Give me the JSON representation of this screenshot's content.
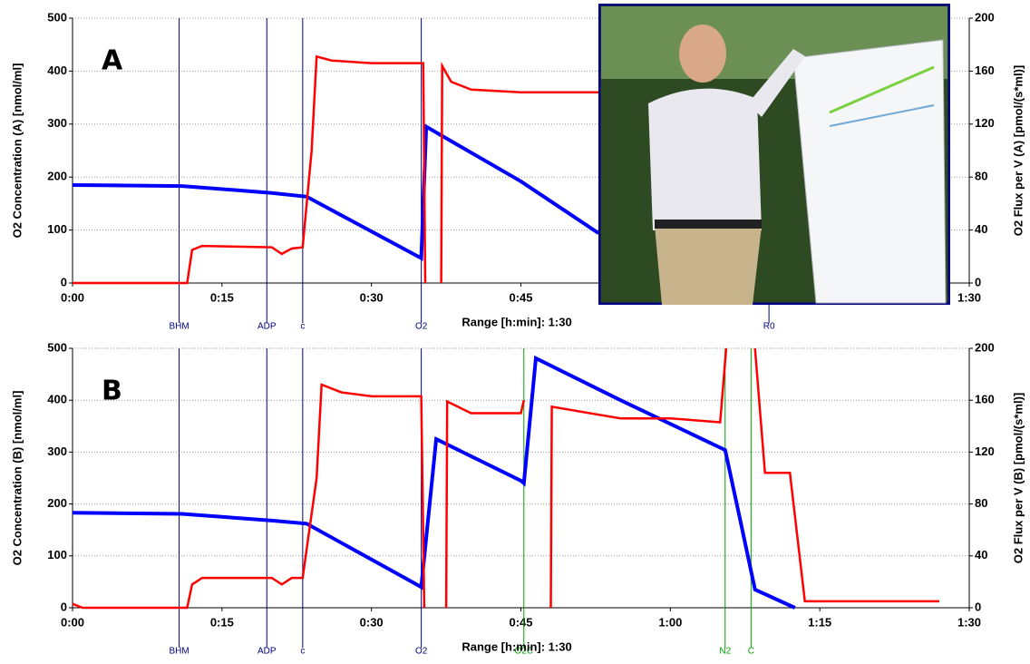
{
  "chart_data": [
    {
      "type": "line",
      "panel": "A",
      "ylabel": "O2 Concentration (A) [nmol/ml]",
      "y2label": "O2 Flux per V (A) [pmol/(s*ml)]",
      "xlabel": "Range [h:min]: 1:30",
      "xlim": [
        0,
        90
      ],
      "ylim": [
        0,
        500
      ],
      "y2lim": [
        0,
        200
      ],
      "grid": true,
      "xticks": [
        {
          "value": 0,
          "label": "0:00"
        },
        {
          "value": 15,
          "label": "0:15"
        },
        {
          "value": 30,
          "label": "0:30"
        },
        {
          "value": 45,
          "label": "0:45"
        },
        {
          "value": 90,
          "label": "1:30"
        }
      ],
      "yticks": [
        0,
        100,
        200,
        300,
        400,
        500
      ],
      "y2ticks": [
        0,
        40,
        80,
        120,
        160,
        200
      ],
      "events": [
        {
          "x": 10.7,
          "label": "BHM",
          "color": "#000080"
        },
        {
          "x": 19.5,
          "label": "ADP",
          "color": "#000080"
        },
        {
          "x": 23.1,
          "label": "c",
          "color": "#000080"
        },
        {
          "x": 35.0,
          "label": "O2",
          "color": "#000080"
        },
        {
          "x": 69.9,
          "label": "R0",
          "color": "#000080"
        }
      ],
      "series": [
        {
          "color": "#0000ff",
          "axis": "y",
          "x": [
            0,
            11,
            20,
            23.5,
            35,
            35.5,
            45,
            52.8
          ],
          "values": [
            185,
            183,
            170,
            163,
            47,
            295,
            192,
            94
          ]
        },
        {
          "color": "#ff0000",
          "axis": "y2",
          "x": [
            0,
            11.5,
            12,
            13,
            20,
            21,
            22,
            23.1,
            24,
            24.5,
            26,
            30,
            35,
            35.2,
            35.4,
            35.5,
            37,
            37.1,
            38,
            40,
            45,
            52.8
          ],
          "values": [
            0,
            0,
            25,
            28,
            27,
            22,
            26,
            27,
            100,
            171,
            168,
            166,
            166,
            166,
            0,
            null,
            0,
            164,
            152,
            146,
            144,
            144
          ]
        }
      ]
    },
    {
      "type": "line",
      "panel": "B",
      "ylabel": "O2 Concentration (B) [nmol/ml]",
      "y2label": "O2 Flux per V (B) [pmol/(s*ml)]",
      "xlabel": "Range [h:min]: 1:30",
      "xlim": [
        0,
        90
      ],
      "ylim": [
        0,
        500
      ],
      "y2lim": [
        0,
        200
      ],
      "grid": true,
      "xticks": [
        {
          "value": 0,
          "label": "0:00"
        },
        {
          "value": 15,
          "label": "0:15"
        },
        {
          "value": 30,
          "label": "0:30"
        },
        {
          "value": 45,
          "label": "0:45"
        },
        {
          "value": 60,
          "label": "1:00"
        },
        {
          "value": 75,
          "label": "1:15"
        },
        {
          "value": 90,
          "label": "1:30"
        }
      ],
      "yticks": [
        0,
        100,
        200,
        300,
        400,
        500
      ],
      "y2ticks": [
        0,
        40,
        80,
        120,
        160,
        200
      ],
      "events": [
        {
          "x": 10.7,
          "label": "BHM",
          "color": "#000080"
        },
        {
          "x": 19.5,
          "label": "ADP",
          "color": "#000080"
        },
        {
          "x": 23.1,
          "label": "c",
          "color": "#000080"
        },
        {
          "x": 35.0,
          "label": "O2",
          "color": "#000080"
        },
        {
          "x": 45.3,
          "label": "O2C",
          "color": "#00a000"
        },
        {
          "x": 65.5,
          "label": "N2",
          "color": "#00a000"
        },
        {
          "x": 68.1,
          "label": "C",
          "color": "#00a000"
        }
      ],
      "series": [
        {
          "color": "#0000ff",
          "axis": "y",
          "x": [
            0,
            11,
            20,
            23.5,
            35,
            36.5,
            45,
            45.3,
            46.5,
            55,
            65.5,
            67,
            68.5,
            72.5
          ],
          "values": [
            183,
            181,
            168,
            162,
            40,
            325,
            245,
            240,
            481,
            400,
            304,
            170,
            35,
            0
          ]
        },
        {
          "color": "#ff0000",
          "axis": "y2",
          "x": [
            0,
            1,
            11.5,
            12,
            13,
            20,
            21,
            22,
            23.1,
            24.5,
            25,
            27,
            30,
            35,
            35.3,
            35.4,
            37.5,
            37.6,
            40,
            45,
            45.3,
            45.5,
            48,
            48.1,
            55,
            60,
            65,
            65.6,
            65.7,
            68.5,
            69.5,
            72,
            73.5,
            87
          ],
          "values": [
            3,
            0,
            0,
            18,
            23,
            23,
            18,
            23,
            23,
            100,
            172,
            166,
            163,
            163,
            0,
            null,
            0,
            159,
            150,
            150,
            160,
            null,
            0,
            155,
            146,
            146,
            143,
            200,
            null,
            200,
            104,
            104,
            5,
            5
          ]
        }
      ]
    }
  ]
}
